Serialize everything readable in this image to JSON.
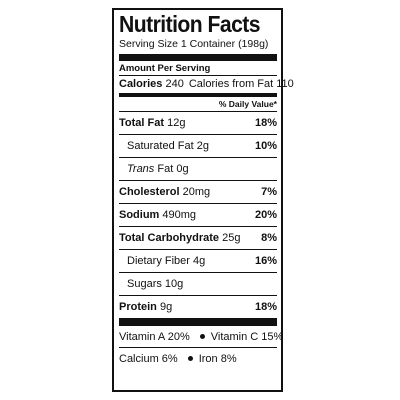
{
  "label": {
    "title": "Nutrition Facts",
    "serving": "Serving Size 1 Container (198g)",
    "amount_per_serving": "Amount Per Serving",
    "calories_label": "Calories",
    "calories_value": "240",
    "calories_from_fat": "Calories from Fat 110",
    "daily_value_header": "% Daily Value*",
    "nutrients": [
      {
        "name": "Total Fat",
        "amount": "12g",
        "dv": "18%"
      },
      {
        "name": "Saturated Fat",
        "amount": "2g",
        "dv": "10%"
      },
      {
        "name": "Trans",
        "name_suffix": "Fat",
        "amount": "0g",
        "dv": ""
      },
      {
        "name": "Cholesterol",
        "amount": "20mg",
        "dv": "7%"
      },
      {
        "name": "Sodium",
        "amount": "490mg",
        "dv": "20%"
      },
      {
        "name": "Total Carbohydrate",
        "amount": "25g",
        "dv": "8%"
      },
      {
        "name": "Dietary Fiber",
        "amount": "4g",
        "dv": "16%"
      },
      {
        "name": "Sugars",
        "amount": "10g",
        "dv": ""
      },
      {
        "name": "Protein",
        "amount": "9g",
        "dv": "18%"
      }
    ],
    "vitamins": {
      "vitamin_a": "Vitamin A 20%",
      "vitamin_c": "Vitamin C 15%",
      "calcium": "Calcium 6%",
      "iron": "Iron 8%"
    }
  }
}
